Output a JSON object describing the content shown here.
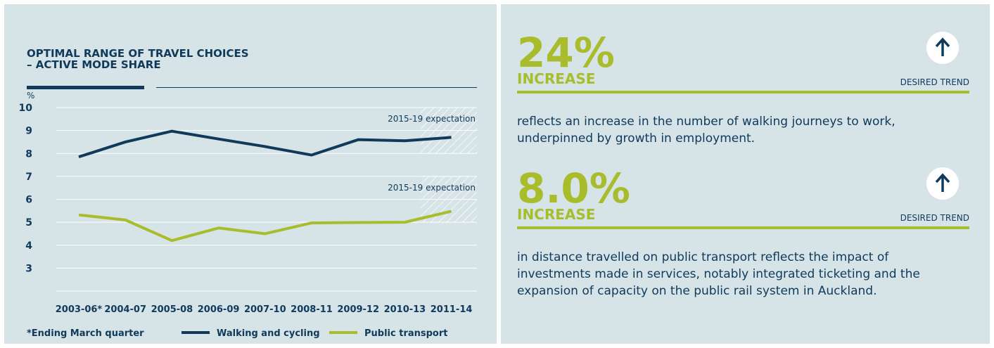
{
  "chart_data": {
    "type": "line",
    "title": "OPTIMAL RANGE OF TRAVEL CHOICES",
    "subtitle": "– ACTIVE MODE SHARE",
    "y_label": "%",
    "categories": [
      "2003-06*",
      "2004-07",
      "2005-08",
      "2006-09",
      "2007-10",
      "2008-11",
      "2009-12",
      "2010-13",
      "2011-14"
    ],
    "series": [
      {
        "name": "Walking and cycling",
        "color": "#0f3a5c",
        "values": [
          7.85,
          8.5,
          8.97,
          8.63,
          8.3,
          7.93,
          8.6,
          8.55,
          8.7
        ]
      },
      {
        "name": "Public transport",
        "color": "#a9bd2c",
        "values": [
          5.32,
          5.1,
          4.2,
          4.75,
          4.5,
          4.97,
          4.99,
          5.0,
          5.48
        ]
      }
    ],
    "ylim": [
      2,
      10
    ],
    "yticks": [
      3,
      4,
      5,
      6,
      7,
      8,
      9,
      10
    ],
    "grid": true,
    "annotations": [
      {
        "label": "2015-19 expectation",
        "range": [
          8,
          10
        ]
      },
      {
        "label": "2015-19 expectation",
        "range": [
          5,
          7
        ]
      }
    ],
    "footnote": "*Ending March quarter"
  },
  "stats": [
    {
      "figure": "24%",
      "label": "INCREASE",
      "trend": "DESIRED TREND",
      "text": [
        "reflects an increase in the number of walking journeys to work,",
        "underpinned by growth in employment."
      ]
    },
    {
      "figure": "8.0%",
      "label": "INCREASE",
      "trend": "DESIRED TREND",
      "text": [
        "in distance travelled on public transport reflects the impact of",
        "investments made in services, notably integrated ticketing and the",
        "expansion of capacity on the public rail system in Auckland."
      ]
    }
  ]
}
